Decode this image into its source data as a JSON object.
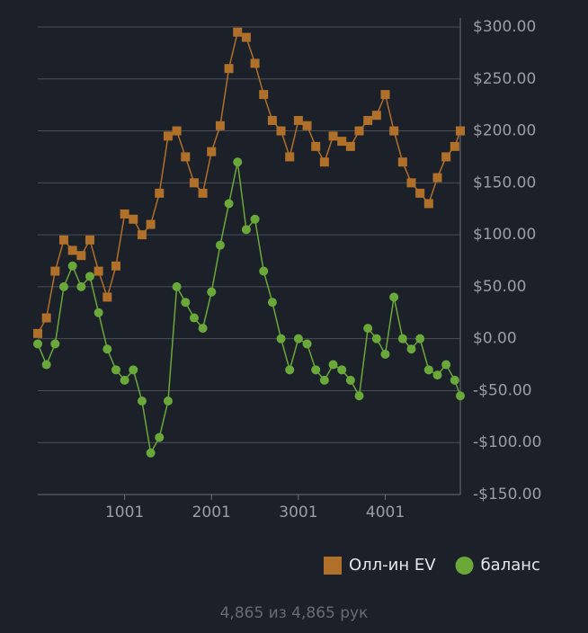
{
  "chart_data": {
    "type": "line",
    "x": [
      1,
      101,
      201,
      301,
      401,
      501,
      601,
      701,
      801,
      901,
      1001,
      1101,
      1201,
      1301,
      1401,
      1501,
      1601,
      1701,
      1801,
      1901,
      2001,
      2101,
      2201,
      2301,
      2401,
      2501,
      2601,
      2701,
      2801,
      2901,
      3001,
      3101,
      3201,
      3301,
      3401,
      3501,
      3601,
      3701,
      3801,
      3901,
      4001,
      4101,
      4201,
      4301,
      4401,
      4501,
      4601,
      4701,
      4801,
      4865
    ],
    "series": [
      {
        "name": "Олл-ин EV",
        "color": "#b0702a",
        "marker": "square",
        "values": [
          5,
          20,
          65,
          95,
          85,
          80,
          95,
          65,
          40,
          70,
          120,
          115,
          100,
          110,
          140,
          195,
          200,
          175,
          150,
          140,
          180,
          205,
          260,
          295,
          290,
          265,
          235,
          210,
          200,
          175,
          210,
          205,
          185,
          170,
          195,
          190,
          185,
          200,
          210,
          215,
          235,
          200,
          170,
          150,
          140,
          130,
          155,
          175,
          185,
          200
        ]
      },
      {
        "name": "баланс",
        "color": "#6aa83a",
        "marker": "circle",
        "values": [
          -5,
          -25,
          -5,
          50,
          70,
          50,
          60,
          25,
          -10,
          -30,
          -40,
          -30,
          -60,
          -110,
          -95,
          -60,
          50,
          35,
          20,
          10,
          45,
          90,
          130,
          170,
          105,
          115,
          65,
          35,
          0,
          -30,
          0,
          -5,
          -30,
          -40,
          -25,
          -30,
          -40,
          -55,
          10,
          0,
          -15,
          40,
          0,
          -10,
          0,
          -30,
          -35,
          -25,
          -40,
          -55
        ]
      }
    ],
    "xlim": [
      1,
      4865
    ],
    "xticks": [
      1001,
      2001,
      3001,
      4001
    ],
    "ylim": [
      -150,
      300
    ],
    "yticks": [
      {
        "value": -150,
        "label": "-$150.00"
      },
      {
        "value": -100,
        "label": "-$100.00"
      },
      {
        "value": -50,
        "label": "-$50.00"
      },
      {
        "value": 0,
        "label": "$0.00"
      },
      {
        "value": 50,
        "label": "$50.00"
      },
      {
        "value": 100,
        "label": "$100.00"
      },
      {
        "value": 150,
        "label": "$150.00"
      },
      {
        "value": 200,
        "label": "$200.00"
      },
      {
        "value": 250,
        "label": "$250.00"
      },
      {
        "value": 300,
        "label": "$300.00"
      }
    ],
    "grid": true,
    "footer": "4,865 из 4,865 рук"
  }
}
